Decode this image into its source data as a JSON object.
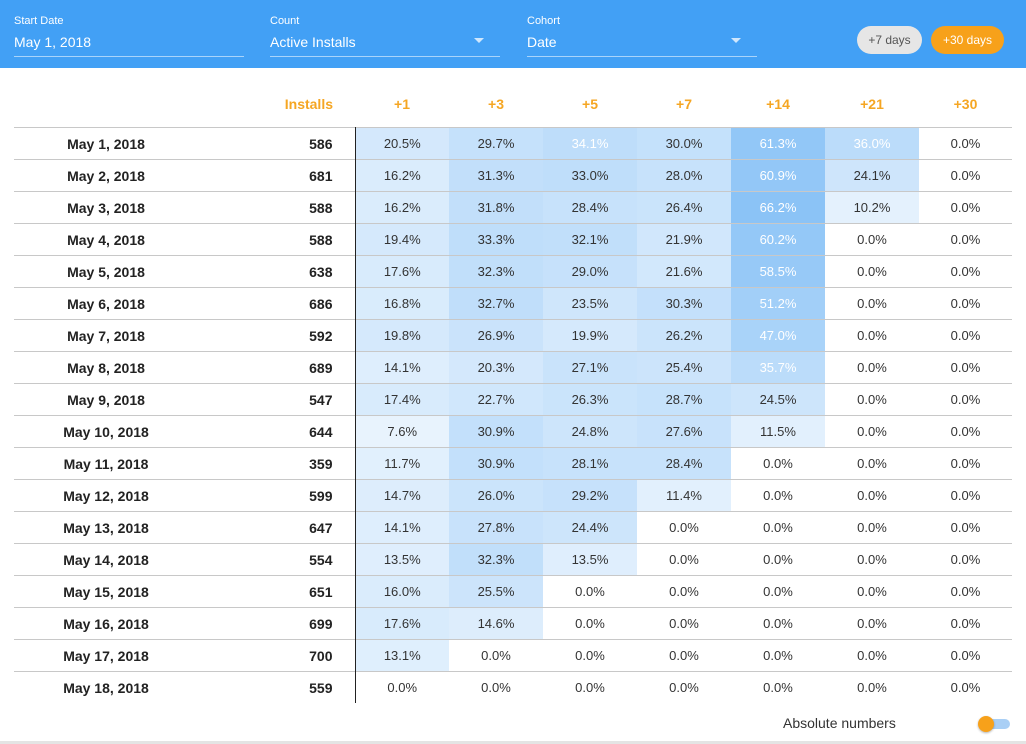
{
  "header": {
    "start_date": {
      "label": "Start Date",
      "value": "May 1, 2018"
    },
    "count": {
      "label": "Count",
      "value": "Active Installs"
    },
    "cohort": {
      "label": "Cohort",
      "value": "Date"
    },
    "buttons": {
      "seven_days": "+7 days",
      "thirty_days": "+30 days"
    }
  },
  "table": {
    "columns": [
      "Installs",
      "+1",
      "+3",
      "+5",
      "+7",
      "+14",
      "+21",
      "+30"
    ],
    "rows": [
      {
        "date": "May 1, 2018",
        "installs": "586",
        "values": [
          "20.5%",
          "29.7%",
          "34.1%",
          "30.0%",
          "61.3%",
          "36.0%",
          "0.0%"
        ]
      },
      {
        "date": "May 2, 2018",
        "installs": "681",
        "values": [
          "16.2%",
          "31.3%",
          "33.0%",
          "28.0%",
          "60.9%",
          "24.1%",
          "0.0%"
        ]
      },
      {
        "date": "May 3, 2018",
        "installs": "588",
        "values": [
          "16.2%",
          "31.8%",
          "28.4%",
          "26.4%",
          "66.2%",
          "10.2%",
          "0.0%"
        ]
      },
      {
        "date": "May 4, 2018",
        "installs": "588",
        "values": [
          "19.4%",
          "33.3%",
          "32.1%",
          "21.9%",
          "60.2%",
          "0.0%",
          "0.0%"
        ]
      },
      {
        "date": "May 5, 2018",
        "installs": "638",
        "values": [
          "17.6%",
          "32.3%",
          "29.0%",
          "21.6%",
          "58.5%",
          "0.0%",
          "0.0%"
        ]
      },
      {
        "date": "May 6, 2018",
        "installs": "686",
        "values": [
          "16.8%",
          "32.7%",
          "23.5%",
          "30.3%",
          "51.2%",
          "0.0%",
          "0.0%"
        ]
      },
      {
        "date": "May 7, 2018",
        "installs": "592",
        "values": [
          "19.8%",
          "26.9%",
          "19.9%",
          "26.2%",
          "47.0%",
          "0.0%",
          "0.0%"
        ]
      },
      {
        "date": "May 8, 2018",
        "installs": "689",
        "values": [
          "14.1%",
          "20.3%",
          "27.1%",
          "25.4%",
          "35.7%",
          "0.0%",
          "0.0%"
        ]
      },
      {
        "date": "May 9, 2018",
        "installs": "547",
        "values": [
          "17.4%",
          "22.7%",
          "26.3%",
          "28.7%",
          "24.5%",
          "0.0%",
          "0.0%"
        ]
      },
      {
        "date": "May 10, 2018",
        "installs": "644",
        "values": [
          "7.6%",
          "30.9%",
          "24.8%",
          "27.6%",
          "11.5%",
          "0.0%",
          "0.0%"
        ]
      },
      {
        "date": "May 11, 2018",
        "installs": "359",
        "values": [
          "11.7%",
          "30.9%",
          "28.1%",
          "28.4%",
          "0.0%",
          "0.0%",
          "0.0%"
        ]
      },
      {
        "date": "May 12, 2018",
        "installs": "599",
        "values": [
          "14.7%",
          "26.0%",
          "29.2%",
          "11.4%",
          "0.0%",
          "0.0%",
          "0.0%"
        ]
      },
      {
        "date": "May 13, 2018",
        "installs": "647",
        "values": [
          "14.1%",
          "27.8%",
          "24.4%",
          "0.0%",
          "0.0%",
          "0.0%",
          "0.0%"
        ]
      },
      {
        "date": "May 14, 2018",
        "installs": "554",
        "values": [
          "13.5%",
          "32.3%",
          "13.5%",
          "0.0%",
          "0.0%",
          "0.0%",
          "0.0%"
        ]
      },
      {
        "date": "May 15, 2018",
        "installs": "651",
        "values": [
          "16.0%",
          "25.5%",
          "0.0%",
          "0.0%",
          "0.0%",
          "0.0%",
          "0.0%"
        ]
      },
      {
        "date": "May 16, 2018",
        "installs": "699",
        "values": [
          "17.6%",
          "14.6%",
          "0.0%",
          "0.0%",
          "0.0%",
          "0.0%",
          "0.0%"
        ]
      },
      {
        "date": "May 17, 2018",
        "installs": "700",
        "values": [
          "13.1%",
          "0.0%",
          "0.0%",
          "0.0%",
          "0.0%",
          "0.0%",
          "0.0%"
        ]
      },
      {
        "date": "May 18, 2018",
        "installs": "559",
        "values": [
          "0.0%",
          "0.0%",
          "0.0%",
          "0.0%",
          "0.0%",
          "0.0%",
          "0.0%"
        ]
      }
    ]
  },
  "footer": {
    "toggle_label": "Absolute numbers"
  },
  "colors": {
    "header_bg": "#42a0f5",
    "accent": "#f5a623",
    "heat": "#78b9f5"
  }
}
